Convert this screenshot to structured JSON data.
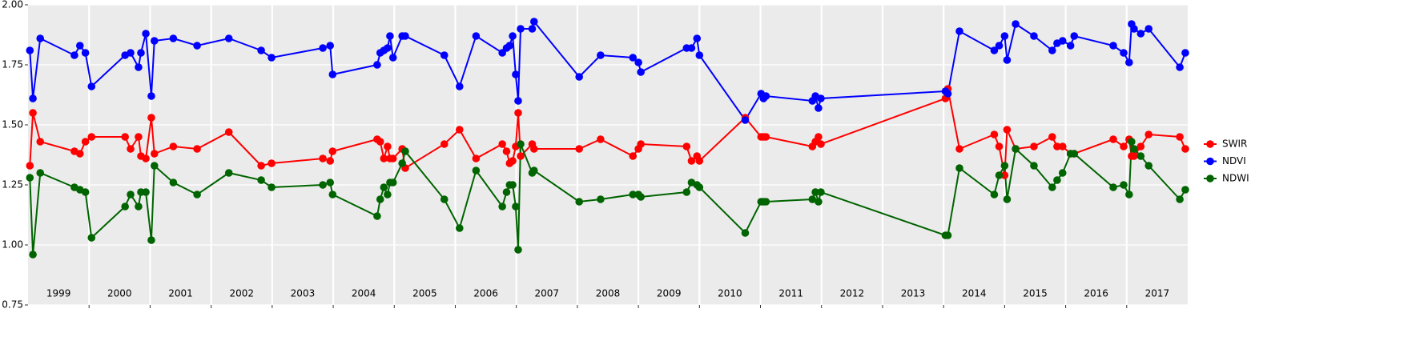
{
  "chart_data": {
    "type": "line",
    "x": [
      1999.03,
      1999.08,
      1999.2,
      1999.76,
      1999.85,
      1999.94,
      2000.04,
      2000.59,
      2000.68,
      2000.81,
      2000.85,
      2000.93,
      2001.02,
      2001.07,
      2001.38,
      2001.77,
      2002.29,
      2002.82,
      2002.99,
      2003.83,
      2003.95,
      2003.99,
      2004.72,
      2004.77,
      2004.83,
      2004.89,
      2004.93,
      2004.98,
      2005.13,
      2005.18,
      2005.82,
      2006.07,
      2006.34,
      2006.77,
      2006.84,
      2006.89,
      2006.94,
      2006.99,
      2007.03,
      2007.07,
      2007.26,
      2007.29,
      2008.03,
      2008.38,
      2008.91,
      2009.0,
      2009.04,
      2009.79,
      2009.87,
      2009.96,
      2010.0,
      2010.75,
      2011.01,
      2011.05,
      2011.09,
      2011.85,
      2011.9,
      2011.95,
      2011.99,
      2014.03,
      2014.07,
      2014.26,
      2014.83,
      2014.91,
      2015.0,
      2015.04,
      2015.18,
      2015.48,
      2015.78,
      2015.86,
      2015.95,
      2016.08,
      2016.14,
      2016.78,
      2016.95,
      2017.04,
      2017.08,
      2017.12,
      2017.23,
      2017.36,
      2017.87,
      2017.96
    ],
    "series": [
      {
        "name": "SWIR",
        "color": "#ff0000",
        "values": [
          1.33,
          1.55,
          1.43,
          1.39,
          1.38,
          1.43,
          1.45,
          1.45,
          1.4,
          1.45,
          1.37,
          1.36,
          1.53,
          1.38,
          1.41,
          1.4,
          1.47,
          1.33,
          1.34,
          1.36,
          1.35,
          1.39,
          1.44,
          1.43,
          1.36,
          1.41,
          1.36,
          1.36,
          1.4,
          1.32,
          1.42,
          1.48,
          1.36,
          1.42,
          1.39,
          1.34,
          1.35,
          1.41,
          1.55,
          1.37,
          1.42,
          1.4,
          1.4,
          1.44,
          1.37,
          1.4,
          1.42,
          1.41,
          1.35,
          1.37,
          1.35,
          1.53,
          1.45,
          1.45,
          1.45,
          1.41,
          1.43,
          1.45,
          1.42,
          1.61,
          1.65,
          1.4,
          1.46,
          1.41,
          1.29,
          1.48,
          1.4,
          1.41,
          1.45,
          1.41,
          1.41,
          1.38,
          1.38,
          1.44,
          1.41,
          1.44,
          1.37,
          1.37,
          1.41,
          1.46,
          1.45,
          1.4
        ]
      },
      {
        "name": "NDVI",
        "color": "#0000ff",
        "values": [
          1.81,
          1.61,
          1.86,
          1.79,
          1.83,
          1.8,
          1.66,
          1.79,
          1.8,
          1.74,
          1.8,
          1.88,
          1.62,
          1.85,
          1.86,
          1.83,
          1.86,
          1.81,
          1.78,
          1.82,
          1.83,
          1.71,
          1.75,
          1.8,
          1.81,
          1.82,
          1.87,
          1.78,
          1.87,
          1.87,
          1.79,
          1.66,
          1.87,
          1.8,
          1.82,
          1.83,
          1.87,
          1.71,
          1.6,
          1.9,
          1.9,
          1.93,
          1.7,
          1.79,
          1.78,
          1.76,
          1.72,
          1.82,
          1.82,
          1.86,
          1.79,
          1.52,
          1.63,
          1.61,
          1.62,
          1.6,
          1.62,
          1.57,
          1.61,
          1.64,
          1.63,
          1.89,
          1.81,
          1.83,
          1.87,
          1.77,
          1.92,
          1.87,
          1.81,
          1.84,
          1.85,
          1.83,
          1.87,
          1.83,
          1.8,
          1.76,
          1.92,
          1.9,
          1.88,
          1.9,
          1.74,
          1.8
        ]
      },
      {
        "name": "NDWI",
        "color": "#006400",
        "values": [
          1.28,
          0.96,
          1.3,
          1.24,
          1.23,
          1.22,
          1.03,
          1.16,
          1.21,
          1.16,
          1.22,
          1.22,
          1.02,
          1.33,
          1.26,
          1.21,
          1.3,
          1.27,
          1.24,
          1.25,
          1.26,
          1.21,
          1.12,
          1.19,
          1.24,
          1.21,
          1.26,
          1.26,
          1.34,
          1.39,
          1.19,
          1.07,
          1.31,
          1.16,
          1.22,
          1.25,
          1.25,
          1.16,
          0.98,
          1.42,
          1.3,
          1.31,
          1.18,
          1.19,
          1.21,
          1.21,
          1.2,
          1.22,
          1.26,
          1.25,
          1.24,
          1.05,
          1.18,
          1.18,
          1.18,
          1.19,
          1.22,
          1.18,
          1.22,
          1.04,
          1.04,
          1.32,
          1.21,
          1.29,
          1.33,
          1.19,
          1.4,
          1.33,
          1.24,
          1.27,
          1.3,
          1.38,
          1.38,
          1.24,
          1.25,
          1.21,
          1.43,
          1.4,
          1.37,
          1.33,
          1.19,
          1.23
        ]
      }
    ],
    "categories": [
      "1999",
      "2000",
      "2001",
      "2002",
      "2003",
      "2004",
      "2005",
      "2006",
      "2007",
      "2008",
      "2009",
      "2010",
      "2011",
      "2012",
      "2013",
      "2014",
      "2015",
      "2016",
      "2017"
    ],
    "xlim": [
      1999,
      2018
    ],
    "xticks": [
      2000,
      2001,
      2002,
      2003,
      2004,
      2005,
      2006,
      2007,
      2008,
      2009,
      2010,
      2011,
      2012,
      2013,
      2014,
      2015,
      2016,
      2017
    ],
    "ylim": [
      0.75,
      2.0
    ],
    "yticks": [
      {
        "value": 0.75,
        "label": "0.75"
      },
      {
        "value": 1.0,
        "label": "1.00"
      },
      {
        "value": 1.25,
        "label": "1.25"
      },
      {
        "value": 1.5,
        "label": "1.50"
      },
      {
        "value": 1.75,
        "label": "1.75"
      },
      {
        "value": 2.0,
        "label": "2.00"
      }
    ],
    "grid": true,
    "legend": "right"
  }
}
